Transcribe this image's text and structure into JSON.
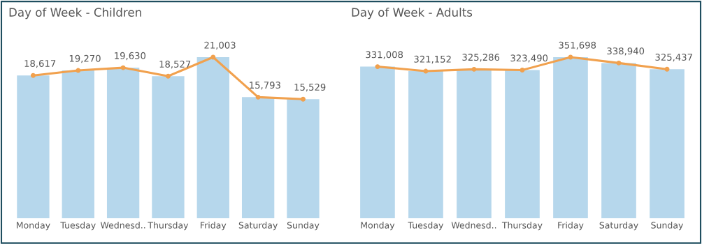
{
  "chart_data": [
    {
      "type": "bar",
      "title": "Day of Week - Children",
      "categories": [
        "Monday",
        "Tuesday",
        "Wednesd..",
        "Thursday",
        "Friday",
        "Saturday",
        "Sunday"
      ],
      "marker": "circle",
      "series": [
        {
          "color": "#b6d7ec",
          "values": [
            18617,
            19270,
            19630,
            18527,
            21003,
            15793,
            15529
          ]
        },
        {
          "type": "line",
          "color": "#f1a14e",
          "values": [
            18617,
            19270,
            19630,
            18527,
            21003,
            15793,
            15529
          ],
          "value_labels": [
            "18,617",
            "19,270",
            "19,630",
            "18,527",
            "21,003",
            "15,793",
            "15,529"
          ]
        }
      ]
    },
    {
      "type": "bar",
      "title": "Day of Week - Adults",
      "categories": [
        "Monday",
        "Tuesday",
        "Wednesd..",
        "Thursday",
        "Friday",
        "Saturday",
        "Sunday"
      ],
      "marker": "circle",
      "series": [
        {
          "color": "#b6d7ec",
          "values": [
            331008,
            321152,
            325286,
            323490,
            351698,
            338940,
            325437
          ]
        },
        {
          "type": "line",
          "color": "#f1a14e",
          "values": [
            331008,
            321152,
            325286,
            323490,
            351698,
            338940,
            325437
          ],
          "value_labels": [
            "331,008",
            "321,152",
            "325,286",
            "323,490",
            "351,698",
            "338,940",
            "325,437"
          ]
        }
      ]
    }
  ]
}
